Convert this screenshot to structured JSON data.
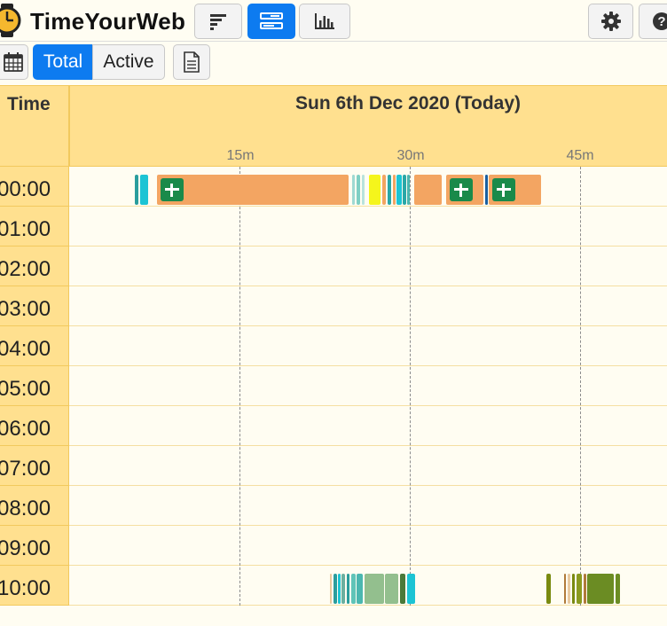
{
  "header": {
    "brand": "TimeYourWeb"
  },
  "toolbar": {
    "total_label": "Total",
    "active_label": "Active"
  },
  "grid": {
    "time_column_title": "Time",
    "date_title": "Sun 6th Dec 2020 (Today)",
    "ticks": [
      "15m",
      "30m",
      "45m"
    ],
    "hours": [
      "00:00",
      "01:00",
      "02:00",
      "03:00",
      "04:00",
      "05:00",
      "06:00",
      "07:00",
      "08:00",
      "09:00",
      "10:00"
    ]
  },
  "icons": {
    "logo": "stopwatch-icon",
    "list_view": "sorted-list-icon",
    "timeline_view": "timeline-icon",
    "stats_view": "bar-chart-icon",
    "settings": "gear-icon",
    "help": "help-icon",
    "calendar": "calendar-icon",
    "export": "document-icon",
    "site": "google-sheets-icon"
  },
  "colors": {
    "accent": "#0d7bf0",
    "header_bg": "#ffe08f",
    "page_bg": "#fffdf2",
    "main_activity": "#f3a562",
    "site_icon": "#1a8a4a"
  }
}
